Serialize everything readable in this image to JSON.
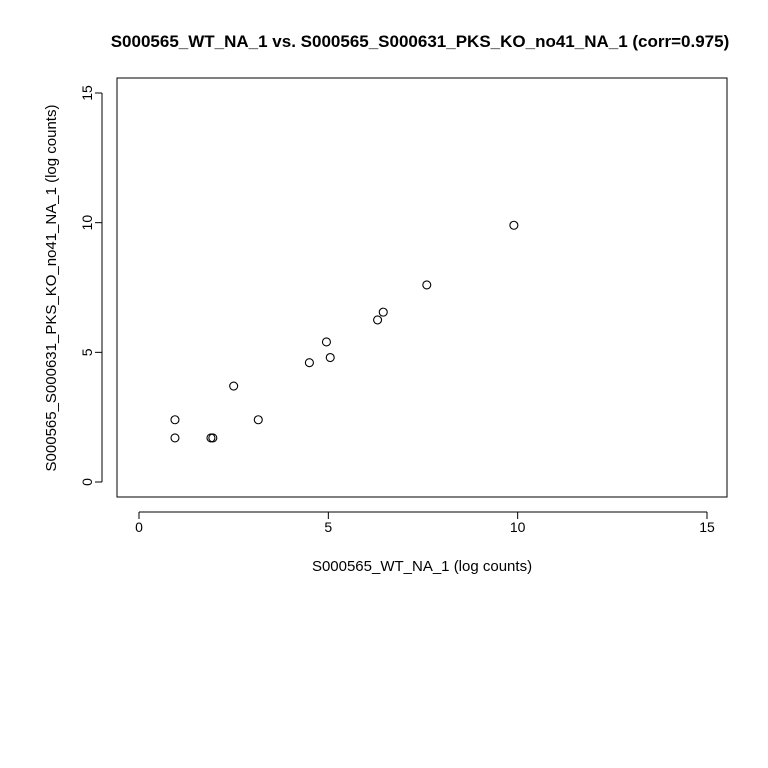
{
  "chart_data": {
    "type": "scatter",
    "title": "S000565_WT_NA_1 vs. S000565_S000631_PKS_KO_no41_NA_1 (corr=0.975)",
    "xlabel": "S000565_WT_NA_1 (log counts)",
    "ylabel": "S000565_S000631_PKS_KO_no41_NA_1 (log counts)",
    "xlim": [
      0,
      15
    ],
    "ylim": [
      0,
      15
    ],
    "x_ticks": [
      "0",
      "5",
      "10",
      "15"
    ],
    "y_ticks": [
      "0",
      "5",
      "10",
      "15"
    ],
    "grid": false,
    "points": [
      {
        "x": 0.95,
        "y": 2.4
      },
      {
        "x": 0.95,
        "y": 1.7
      },
      {
        "x": 1.9,
        "y": 1.7
      },
      {
        "x": 1.95,
        "y": 1.7
      },
      {
        "x": 2.5,
        "y": 3.7
      },
      {
        "x": 3.15,
        "y": 2.4
      },
      {
        "x": 4.5,
        "y": 4.6
      },
      {
        "x": 4.95,
        "y": 5.4
      },
      {
        "x": 5.05,
        "y": 4.8
      },
      {
        "x": 6.3,
        "y": 6.25
      },
      {
        "x": 6.45,
        "y": 6.55
      },
      {
        "x": 7.6,
        "y": 7.6
      },
      {
        "x": 9.9,
        "y": 9.9
      }
    ]
  }
}
